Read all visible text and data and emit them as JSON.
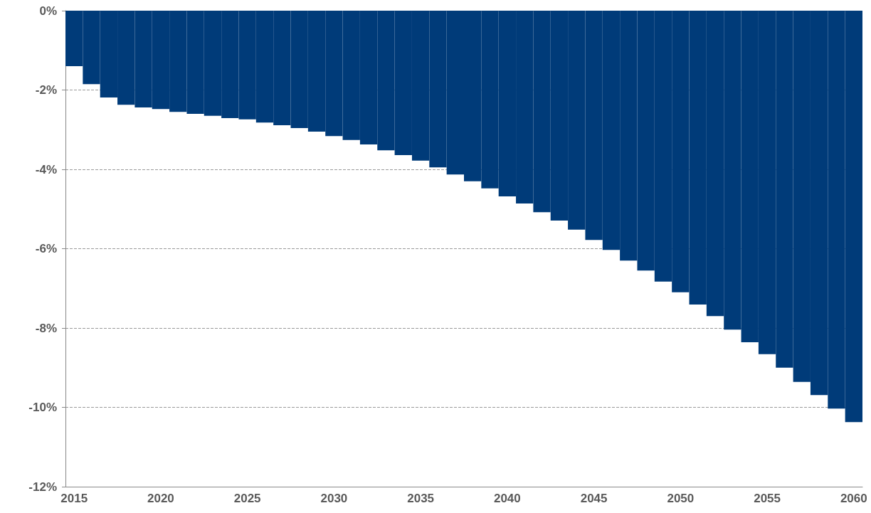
{
  "chart_data": {
    "type": "bar",
    "color": "#003b79",
    "grid": "y",
    "categories": [
      "2015",
      null,
      null,
      null,
      null,
      "2020",
      null,
      null,
      null,
      null,
      "2025",
      null,
      null,
      null,
      null,
      "2030",
      null,
      null,
      null,
      null,
      "2035",
      null,
      null,
      null,
      null,
      "2040",
      null,
      null,
      null,
      null,
      "2045",
      null,
      null,
      null,
      null,
      "2050",
      null,
      null,
      null,
      null,
      "2055",
      null,
      null,
      null,
      null,
      "2060"
    ],
    "values": [
      -1.4,
      -1.85,
      -2.19,
      -2.37,
      -2.44,
      -2.48,
      -2.55,
      -2.6,
      -2.65,
      -2.71,
      -2.74,
      -2.82,
      -2.89,
      -2.96,
      -3.05,
      -3.16,
      -3.26,
      -3.37,
      -3.52,
      -3.64,
      -3.78,
      -3.95,
      -4.13,
      -4.3,
      -4.48,
      -4.68,
      -4.86,
      -5.08,
      -5.29,
      -5.52,
      -5.78,
      -6.03,
      -6.3,
      -6.55,
      -6.83,
      -7.1,
      -7.41,
      -7.7,
      -8.04,
      -8.36,
      -8.66,
      -9.0,
      -9.36,
      -9.69,
      -10.03,
      -10.37
    ],
    "ylim": [
      -12,
      0
    ],
    "yticks": [
      {
        "value": -12,
        "label": "-12%"
      },
      {
        "value": -10,
        "label": "-10%"
      },
      {
        "value": -8,
        "label": "-8%"
      },
      {
        "value": -6,
        "label": "-6%"
      },
      {
        "value": -4,
        "label": "-4%"
      },
      {
        "value": -2,
        "label": "-2%"
      },
      {
        "value": 0,
        "label": "0%"
      }
    ]
  }
}
